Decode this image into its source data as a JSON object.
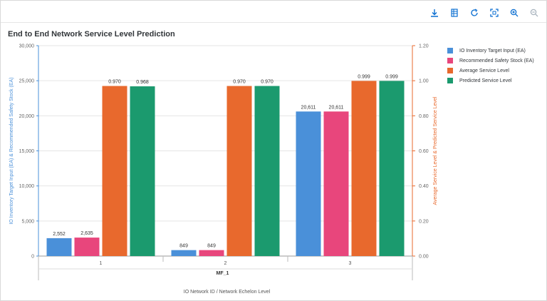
{
  "toolbar": {
    "icons": [
      "download-icon",
      "table-view-icon",
      "refresh-icon",
      "fullscreen-icon",
      "zoom-in-icon",
      "zoom-out-icon"
    ]
  },
  "title": "End to End Network Service Level Prediction",
  "colors": {
    "series": [
      "#4a90d9",
      "#e8467c",
      "#e8692d",
      "#1b9a6e"
    ],
    "left_axis": "#4a90d9",
    "right_axis": "#e8692d"
  },
  "chart_data": {
    "type": "bar",
    "title": "End to End Network Service Level Prediction",
    "categories": [
      "1",
      "2",
      "3"
    ],
    "group_label": "MF_1",
    "xlabel": "IO Network ID / Network Echelon Level",
    "ylabel_left": "IO Inventory Target Input (EA) & Recommended Safety Stock (EA)",
    "ylabel_right": "Average Service Level & Predicted Service Level",
    "ylim_left": [
      0,
      30000
    ],
    "ylim_right": [
      0,
      1.2
    ],
    "yticks_left": [
      "0",
      "5,000",
      "10,000",
      "15,000",
      "20,000",
      "25,000",
      "30,000"
    ],
    "yticks_right": [
      "0.00",
      "0.20",
      "0.40",
      "0.60",
      "0.80",
      "1.00",
      "1.20"
    ],
    "legend_position": "right",
    "series": [
      {
        "name": "IO Inventory Target Input (EA)",
        "axis": "left",
        "values": [
          2552,
          849,
          20611
        ],
        "labels": [
          "2,552",
          "849",
          "20,611"
        ]
      },
      {
        "name": "Recommended Safety Stock (EA)",
        "axis": "left",
        "values": [
          2635,
          849,
          20611
        ],
        "labels": [
          "2,635",
          "849",
          "20,611"
        ]
      },
      {
        "name": "Average Service Level",
        "axis": "right",
        "values": [
          0.97,
          0.97,
          0.999
        ],
        "labels": [
          "0.970",
          "0.970",
          "0.999"
        ]
      },
      {
        "name": "Predicted Service Level",
        "axis": "right",
        "values": [
          0.968,
          0.97,
          0.999
        ],
        "labels": [
          "0.968",
          "0.970",
          "0.999"
        ]
      }
    ]
  }
}
